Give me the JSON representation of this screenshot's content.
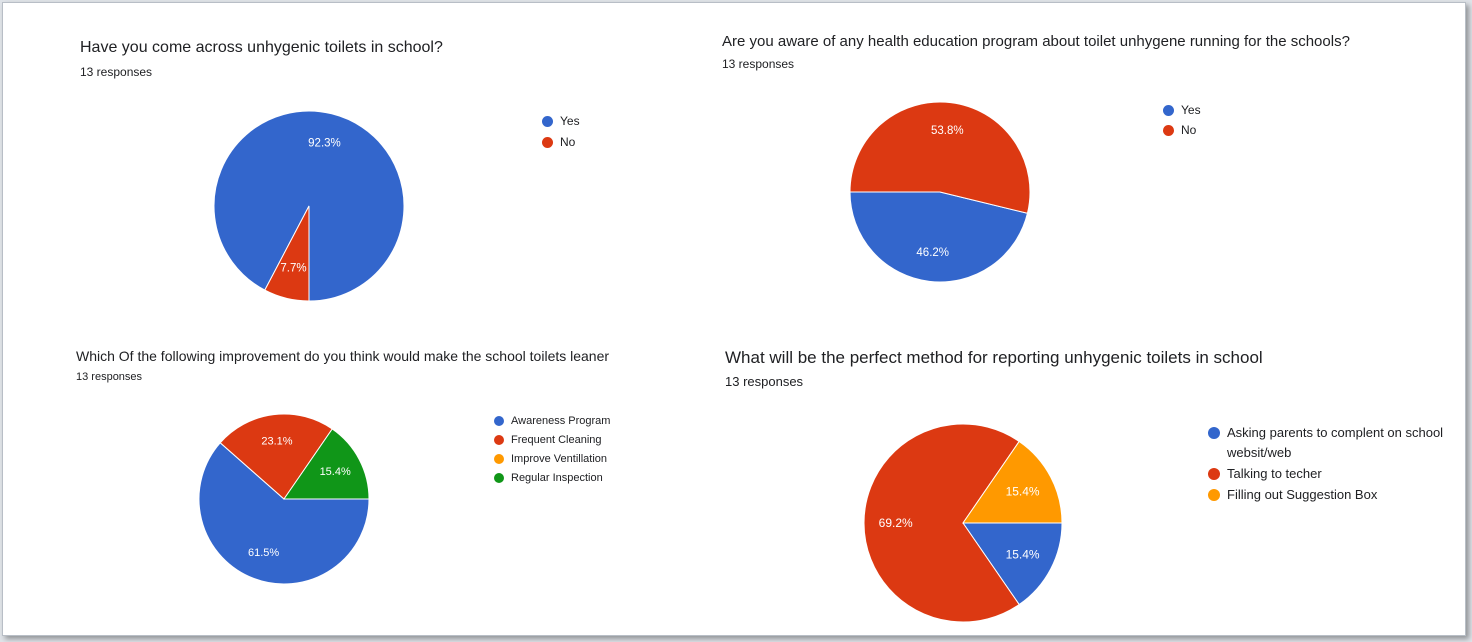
{
  "charts": [
    {
      "title": "Have you come across unhygenic toilets in school?",
      "responses": "13 responses",
      "chart_data": {
        "type": "pie",
        "categories": [
          "Yes",
          "No"
        ],
        "values": [
          92.3,
          7.7
        ],
        "data_labels": [
          "92.3%",
          "7.7%"
        ],
        "colors": [
          "#3366cc",
          "#dc3912"
        ],
        "legend": "right"
      }
    },
    {
      "title": "Are you aware of any health education program about toilet unhygene running for the schools?",
      "responses": "13 responses",
      "chart_data": {
        "type": "pie",
        "categories": [
          "Yes",
          "No"
        ],
        "values": [
          46.2,
          53.8
        ],
        "data_labels": [
          "46.2%",
          "53.8%"
        ],
        "colors": [
          "#3366cc",
          "#dc3912"
        ],
        "legend": "right"
      }
    },
    {
      "title": "Which Of the following improvement do you think would make the school toilets leaner",
      "responses": "13 responses",
      "chart_data": {
        "type": "pie",
        "categories": [
          "Awareness Program",
          "Frequent Cleaning",
          "Improve Ventillation",
          "Regular Inspection"
        ],
        "values": [
          61.5,
          23.1,
          0,
          15.4
        ],
        "data_labels": [
          "61.5%",
          "23.1%",
          "",
          "15.4%"
        ],
        "colors": [
          "#3366cc",
          "#dc3912",
          "#ff9900",
          "#109618"
        ],
        "legend": "right"
      }
    },
    {
      "title": "What will be the perfect method for reporting unhygenic toilets in school",
      "responses": "13 responses",
      "chart_data": {
        "type": "pie",
        "categories": [
          "Asking parents to complent on school websit/web",
          "Talking to techer",
          "Filling out Suggestion Box"
        ],
        "values": [
          15.4,
          69.2,
          15.4
        ],
        "data_labels": [
          "15.4%",
          "69.2%",
          "15.4%"
        ],
        "colors": [
          "#3366cc",
          "#dc3912",
          "#ff9900"
        ],
        "legend": "right"
      }
    }
  ]
}
